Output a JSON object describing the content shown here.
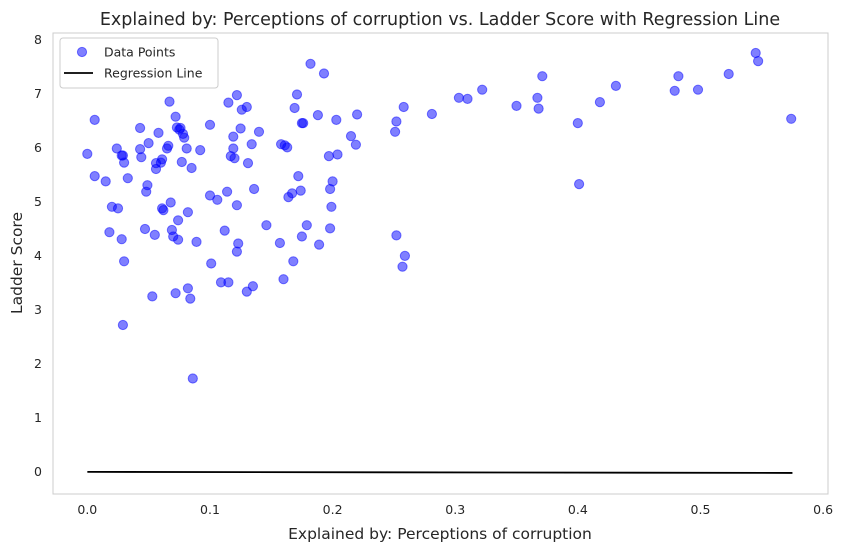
{
  "chart_data": {
    "type": "scatter",
    "title": "Explained by: Perceptions of corruption vs. Ladder Score with Regression Line",
    "xlabel": "Explained by: Perceptions of corruption",
    "ylabel": "Ladder Score",
    "xlim": [
      -0.028,
      0.604
    ],
    "ylim": [
      -0.42,
      8.12
    ],
    "xticks": [
      0.0,
      0.1,
      0.2,
      0.3,
      0.4,
      0.5,
      0.6
    ],
    "xtick_labels": [
      "0.0",
      "0.1",
      "0.2",
      "0.3",
      "0.4",
      "0.5",
      "0.6"
    ],
    "yticks": [
      0,
      1,
      2,
      3,
      4,
      5,
      6,
      7,
      8
    ],
    "ytick_labels": [
      "0",
      "1",
      "2",
      "3",
      "4",
      "5",
      "6",
      "7",
      "8"
    ],
    "grid": false,
    "legend_position": "top-left",
    "series": [
      {
        "name": "Data Points",
        "kind": "scatter",
        "color": "#0000ff",
        "points": [
          [
            0.0,
            5.88
          ],
          [
            0.006,
            6.51
          ],
          [
            0.006,
            5.47
          ],
          [
            0.015,
            5.37
          ],
          [
            0.018,
            4.43
          ],
          [
            0.02,
            4.9
          ],
          [
            0.024,
            5.98
          ],
          [
            0.025,
            4.87
          ],
          [
            0.028,
            5.85
          ],
          [
            0.029,
            5.85
          ],
          [
            0.028,
            4.3
          ],
          [
            0.03,
            5.72
          ],
          [
            0.03,
            3.89
          ],
          [
            0.029,
            2.71
          ],
          [
            0.033,
            5.43
          ],
          [
            0.043,
            6.36
          ],
          [
            0.043,
            5.97
          ],
          [
            0.044,
            5.82
          ],
          [
            0.047,
            4.49
          ],
          [
            0.048,
            5.18
          ],
          [
            0.049,
            5.3
          ],
          [
            0.05,
            6.08
          ],
          [
            0.053,
            3.24
          ],
          [
            0.055,
            4.38
          ],
          [
            0.056,
            5.71
          ],
          [
            0.056,
            5.6
          ],
          [
            0.058,
            6.27
          ],
          [
            0.06,
            5.72
          ],
          [
            0.061,
            5.78
          ],
          [
            0.061,
            4.87
          ],
          [
            0.062,
            4.84
          ],
          [
            0.065,
            5.98
          ],
          [
            0.066,
            6.03
          ],
          [
            0.067,
            6.85
          ],
          [
            0.068,
            4.98
          ],
          [
            0.069,
            4.47
          ],
          [
            0.07,
            4.35
          ],
          [
            0.072,
            3.3
          ],
          [
            0.072,
            6.57
          ],
          [
            0.073,
            6.37
          ],
          [
            0.074,
            4.65
          ],
          [
            0.074,
            4.29
          ],
          [
            0.075,
            6.33
          ],
          [
            0.076,
            6.36
          ],
          [
            0.077,
            5.73
          ],
          [
            0.078,
            6.25
          ],
          [
            0.079,
            6.18
          ],
          [
            0.081,
            5.98
          ],
          [
            0.082,
            3.39
          ],
          [
            0.082,
            4.8
          ],
          [
            0.084,
            3.2
          ],
          [
            0.086,
            1.72
          ],
          [
            0.085,
            5.62
          ],
          [
            0.089,
            4.25
          ],
          [
            0.092,
            5.95
          ],
          [
            0.1,
            6.42
          ],
          [
            0.1,
            5.11
          ],
          [
            0.101,
            3.85
          ],
          [
            0.106,
            5.03
          ],
          [
            0.109,
            3.5
          ],
          [
            0.112,
            4.46
          ],
          [
            0.114,
            5.18
          ],
          [
            0.115,
            6.83
          ],
          [
            0.115,
            3.5
          ],
          [
            0.117,
            5.84
          ],
          [
            0.119,
            6.2
          ],
          [
            0.119,
            5.98
          ],
          [
            0.12,
            5.8
          ],
          [
            0.122,
            4.93
          ],
          [
            0.123,
            4.22
          ],
          [
            0.122,
            4.07
          ],
          [
            0.122,
            6.97
          ],
          [
            0.125,
            6.35
          ],
          [
            0.126,
            6.7
          ],
          [
            0.13,
            6.75
          ],
          [
            0.13,
            3.33
          ],
          [
            0.131,
            5.71
          ],
          [
            0.134,
            6.06
          ],
          [
            0.135,
            3.43
          ],
          [
            0.136,
            5.23
          ],
          [
            0.14,
            6.29
          ],
          [
            0.146,
            4.56
          ],
          [
            0.157,
            4.23
          ],
          [
            0.158,
            6.06
          ],
          [
            0.16,
            3.56
          ],
          [
            0.161,
            6.04
          ],
          [
            0.163,
            6.0
          ],
          [
            0.164,
            5.08
          ],
          [
            0.167,
            5.15
          ],
          [
            0.168,
            3.89
          ],
          [
            0.169,
            6.73
          ],
          [
            0.171,
            6.98
          ],
          [
            0.172,
            5.47
          ],
          [
            0.174,
            5.2
          ],
          [
            0.175,
            6.45
          ],
          [
            0.175,
            4.35
          ],
          [
            0.176,
            6.45
          ],
          [
            0.179,
            4.56
          ],
          [
            0.182,
            7.55
          ],
          [
            0.188,
            6.6
          ],
          [
            0.189,
            4.2
          ],
          [
            0.193,
            7.37
          ],
          [
            0.197,
            5.84
          ],
          [
            0.198,
            5.23
          ],
          [
            0.198,
            4.5
          ],
          [
            0.199,
            4.9
          ],
          [
            0.2,
            5.37
          ],
          [
            0.203,
            6.51
          ],
          [
            0.204,
            5.87
          ],
          [
            0.215,
            6.21
          ],
          [
            0.219,
            6.05
          ],
          [
            0.22,
            6.61
          ],
          [
            0.251,
            6.29
          ],
          [
            0.252,
            6.48
          ],
          [
            0.252,
            4.37
          ],
          [
            0.257,
            3.79
          ],
          [
            0.258,
            6.75
          ],
          [
            0.259,
            3.99
          ],
          [
            0.281,
            6.62
          ],
          [
            0.303,
            6.92
          ],
          [
            0.31,
            6.9
          ],
          [
            0.322,
            7.07
          ],
          [
            0.35,
            6.77
          ],
          [
            0.367,
            6.92
          ],
          [
            0.368,
            6.72
          ],
          [
            0.371,
            7.32
          ],
          [
            0.4,
            6.45
          ],
          [
            0.401,
            5.32
          ],
          [
            0.418,
            6.84
          ],
          [
            0.431,
            7.14
          ],
          [
            0.479,
            7.05
          ],
          [
            0.482,
            7.32
          ],
          [
            0.498,
            7.07
          ],
          [
            0.523,
            7.36
          ],
          [
            0.545,
            7.75
          ],
          [
            0.547,
            7.6
          ],
          [
            0.574,
            6.53
          ]
        ]
      },
      {
        "name": "Regression Line",
        "kind": "line",
        "color": "#000000",
        "x": [
          0.0,
          0.575
        ],
        "y": [
          -0.01,
          -0.03
        ]
      }
    ]
  }
}
